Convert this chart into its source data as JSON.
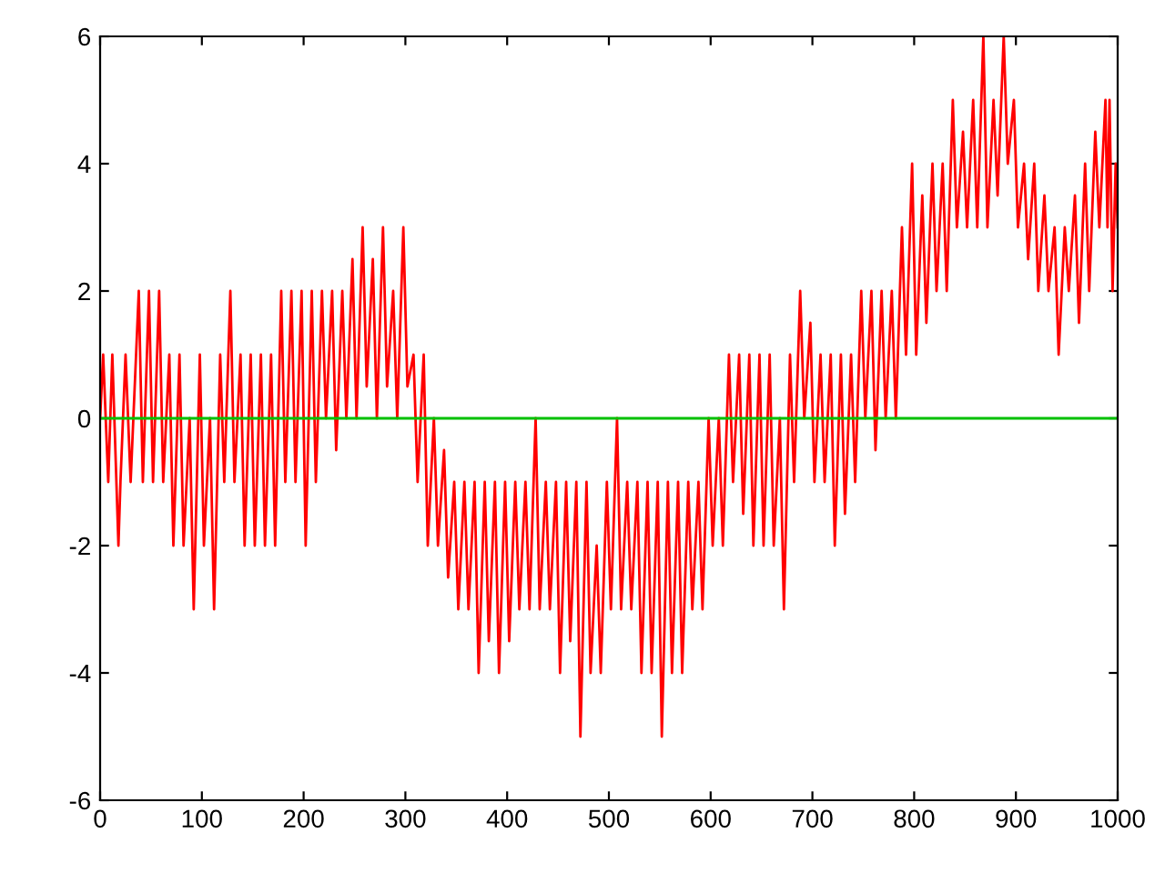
{
  "chart_data": {
    "type": "line",
    "xlim": [
      0,
      1000
    ],
    "ylim": [
      -6,
      6
    ],
    "xticks": [
      0,
      100,
      200,
      300,
      400,
      500,
      600,
      700,
      800,
      900,
      1000
    ],
    "yticks": [
      -6,
      -4,
      -2,
      0,
      2,
      4,
      6
    ],
    "grid": false,
    "legend": false,
    "marker": "none",
    "line_style": "solid",
    "series": [
      {
        "color": "#ff0000",
        "x": [
          0,
          3,
          8,
          12,
          18,
          20,
          25,
          30,
          38,
          42,
          48,
          52,
          58,
          62,
          68,
          72,
          78,
          82,
          88,
          92,
          98,
          102,
          108,
          112,
          118,
          122,
          128,
          132,
          138,
          142,
          148,
          152,
          158,
          162,
          168,
          172,
          178,
          182,
          188,
          192,
          198,
          202,
          208,
          212,
          218,
          222,
          228,
          232,
          238,
          242,
          248,
          252,
          258,
          262,
          268,
          272,
          278,
          282,
          288,
          292,
          298,
          302,
          308,
          312,
          318,
          322,
          328,
          332,
          338,
          342,
          348,
          352,
          358,
          362,
          368,
          372,
          378,
          382,
          388,
          392,
          398,
          402,
          408,
          412,
          418,
          422,
          428,
          432,
          438,
          442,
          448,
          452,
          458,
          462,
          468,
          472,
          478,
          482,
          488,
          492,
          498,
          502,
          508,
          512,
          518,
          522,
          528,
          532,
          538,
          542,
          548,
          552,
          558,
          562,
          568,
          572,
          578,
          582,
          588,
          592,
          598,
          602,
          608,
          612,
          618,
          622,
          628,
          632,
          638,
          642,
          648,
          652,
          658,
          662,
          668,
          672,
          678,
          682,
          688,
          692,
          698,
          702,
          708,
          712,
          718,
          722,
          728,
          732,
          738,
          742,
          748,
          752,
          758,
          762,
          768,
          772,
          778,
          782,
          788,
          792,
          798,
          802,
          808,
          812,
          818,
          822,
          828,
          832,
          838,
          842,
          848,
          852,
          858,
          862,
          868,
          872,
          878,
          882,
          888,
          892,
          898,
          902,
          908,
          912,
          918,
          922,
          928,
          932,
          938,
          942,
          948,
          952,
          958,
          962,
          968,
          972,
          978,
          982,
          988,
          990,
          992,
          995,
          998,
          1000
        ],
        "values": [
          0,
          1,
          -1,
          1,
          -2,
          -1,
          1,
          -1,
          2,
          -1,
          2,
          -1,
          2,
          -1,
          1,
          -2,
          1,
          -2,
          0,
          -3,
          1,
          -2,
          0,
          -3,
          1,
          -1,
          2,
          -1,
          1,
          -2,
          1,
          -2,
          1,
          -2,
          1,
          -2,
          2,
          -1,
          2,
          -1,
          2,
          -2,
          2,
          -1,
          2,
          0,
          2,
          -0.5,
          2,
          0,
          2.5,
          0,
          3,
          0.5,
          2.5,
          0,
          3,
          0.5,
          2,
          0,
          3,
          0.5,
          1,
          -1,
          1,
          -2,
          0,
          -2,
          -0.5,
          -2.5,
          -1,
          -3,
          -1,
          -3,
          -1,
          -4,
          -1,
          -3.5,
          -1,
          -4,
          -1,
          -3.5,
          -1,
          -3,
          -1,
          -3,
          0,
          -3,
          -1,
          -3,
          -1,
          -4,
          -1,
          -3.5,
          -1,
          -5,
          -1,
          -4,
          -2,
          -4,
          -1,
          -3,
          0,
          -3,
          -1,
          -3,
          -1,
          -4,
          -1,
          -4,
          -1,
          -5,
          -1,
          -4,
          -1,
          -4,
          -1,
          -3,
          -1,
          -3,
          0,
          -2,
          0,
          -2,
          1,
          -1,
          1,
          -1.5,
          1,
          -2,
          1,
          -2,
          1,
          -2,
          0,
          -3,
          1,
          -1,
          2,
          0,
          1.5,
          -1,
          1,
          -1,
          1,
          -2,
          1,
          -1.5,
          1,
          -1,
          2,
          0,
          2,
          -0.5,
          2,
          0,
          2,
          0,
          3,
          1,
          4,
          1,
          3.5,
          1.5,
          4,
          2,
          4,
          2,
          5,
          3,
          4.5,
          3,
          5,
          3,
          6,
          3,
          5,
          3.5,
          6,
          4,
          5,
          3,
          4,
          2.5,
          4,
          2,
          3.5,
          2,
          3,
          1,
          3,
          2,
          3.5,
          1.5,
          4,
          2,
          4.5,
          3,
          5,
          3,
          5,
          2,
          4,
          3
        ]
      },
      {
        "color": "#00c000",
        "x": [
          0,
          1000
        ],
        "values": [
          0,
          0
        ]
      }
    ]
  }
}
